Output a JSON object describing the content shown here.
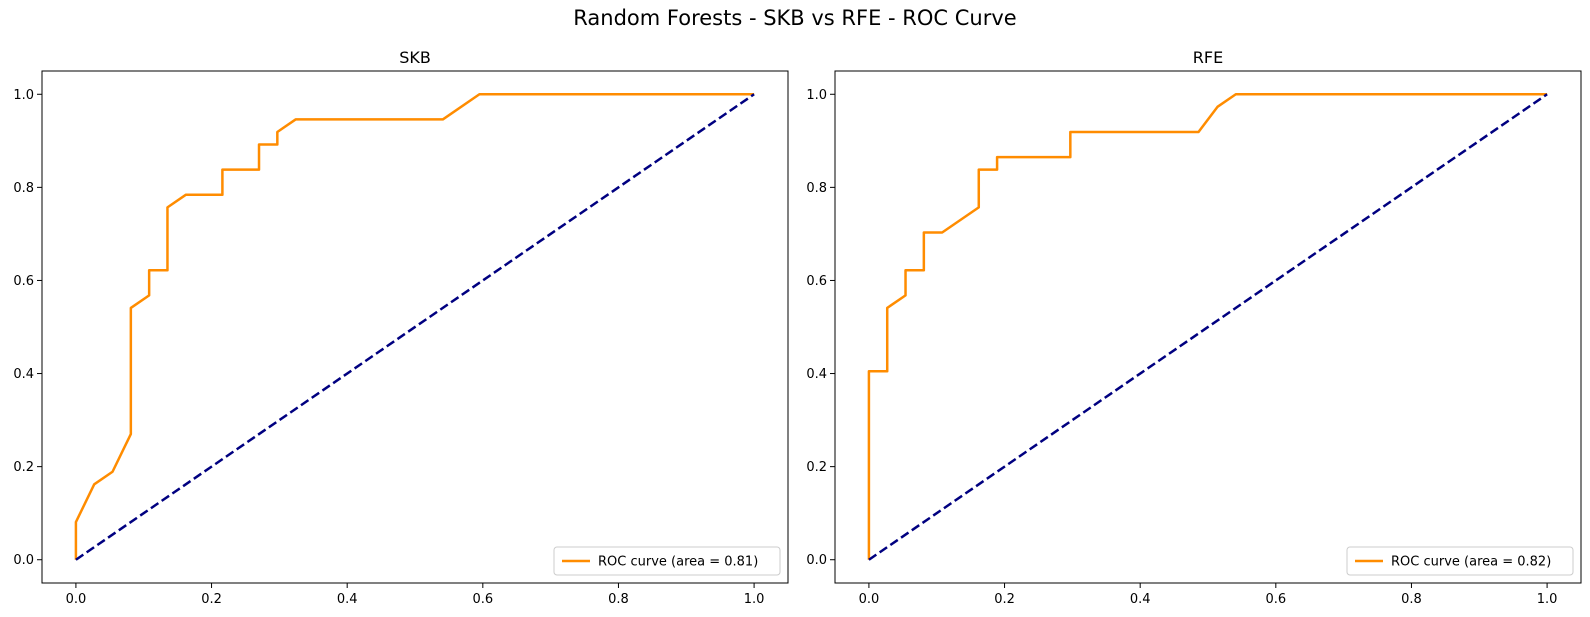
{
  "suptitle": "Random Forests - SKB vs RFE - ROC Curve",
  "chart_data": [
    {
      "type": "line",
      "title": "SKB",
      "xlabel": "",
      "ylabel": "",
      "xlim": [
        -0.05,
        1.05
      ],
      "ylim": [
        -0.05,
        1.05
      ],
      "xticks": [
        0.0,
        0.2,
        0.4,
        0.6,
        0.8,
        1.0
      ],
      "yticks": [
        0.0,
        0.2,
        0.4,
        0.6,
        0.8,
        1.0
      ],
      "legend_position": "lower-right",
      "series": [
        {
          "name": "ROC curve (area = 0.81)",
          "color": "#ff8c00",
          "style": "solid",
          "x": [
            0.0,
            0.0,
            0.027,
            0.054,
            0.081,
            0.081,
            0.081,
            0.108,
            0.108,
            0.135,
            0.135,
            0.162,
            0.216,
            0.216,
            0.27,
            0.27,
            0.297,
            0.297,
            0.324,
            0.541,
            0.595,
            1.0
          ],
          "y": [
            0.0,
            0.081,
            0.162,
            0.189,
            0.27,
            0.541,
            0.541,
            0.568,
            0.622,
            0.622,
            0.757,
            0.784,
            0.784,
            0.838,
            0.838,
            0.892,
            0.892,
            0.919,
            0.946,
            0.946,
            1.0,
            1.0
          ]
        },
        {
          "name": "",
          "color": "#000080",
          "style": "dashed",
          "x": [
            0.0,
            1.0
          ],
          "y": [
            0.0,
            1.0
          ]
        }
      ]
    },
    {
      "type": "line",
      "title": "RFE",
      "xlabel": "",
      "ylabel": "",
      "xlim": [
        -0.05,
        1.05
      ],
      "ylim": [
        -0.05,
        1.05
      ],
      "xticks": [
        0.0,
        0.2,
        0.4,
        0.6,
        0.8,
        1.0
      ],
      "yticks": [
        0.0,
        0.2,
        0.4,
        0.6,
        0.8,
        1.0
      ],
      "legend_position": "lower-right",
      "series": [
        {
          "name": "ROC curve (area = 0.82)",
          "color": "#ff8c00",
          "style": "solid",
          "x": [
            0.0,
            0.0,
            0.027,
            0.027,
            0.054,
            0.054,
            0.081,
            0.081,
            0.108,
            0.162,
            0.162,
            0.189,
            0.189,
            0.297,
            0.297,
            0.486,
            0.514,
            0.541,
            1.0
          ],
          "y": [
            0.0,
            0.405,
            0.405,
            0.541,
            0.568,
            0.622,
            0.622,
            0.703,
            0.703,
            0.757,
            0.838,
            0.838,
            0.865,
            0.865,
            0.919,
            0.919,
            0.973,
            1.0,
            1.0
          ]
        },
        {
          "name": "",
          "color": "#000080",
          "style": "dashed",
          "x": [
            0.0,
            1.0
          ],
          "y": [
            0.0,
            1.0
          ]
        }
      ]
    }
  ]
}
